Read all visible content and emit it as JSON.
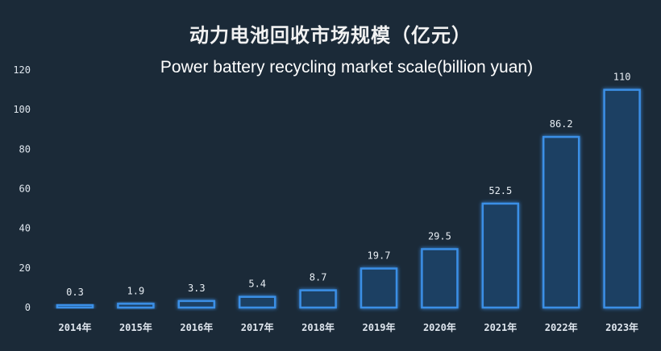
{
  "chart_data": {
    "type": "bar",
    "title": "动力电池回收市场规模（亿元）",
    "subtitle": "Power battery recycling market scale(billion yuan)",
    "categories": [
      "2014年",
      "2015年",
      "2016年",
      "2017年",
      "2018年",
      "2019年",
      "2020年",
      "2021年",
      "2022年",
      "2023年"
    ],
    "values": [
      0.3,
      1.9,
      3.3,
      5.4,
      8.7,
      19.7,
      29.5,
      52.5,
      86.2,
      110
    ],
    "value_labels": [
      "0.3",
      "1.9",
      "3.3",
      "5.4",
      "8.7",
      "19.7",
      "29.5",
      "52.5",
      "86.2",
      "110"
    ],
    "ylim": [
      0,
      120
    ],
    "yticks": [
      "0",
      "20",
      "40",
      "60",
      "80",
      "100",
      "120"
    ],
    "grid": false,
    "colors": {
      "background": "#1b2a38",
      "bar_fill": "#1e3f63",
      "bar_stroke": "#3a8fe6",
      "bar_glow": "#2f7fd8"
    }
  }
}
